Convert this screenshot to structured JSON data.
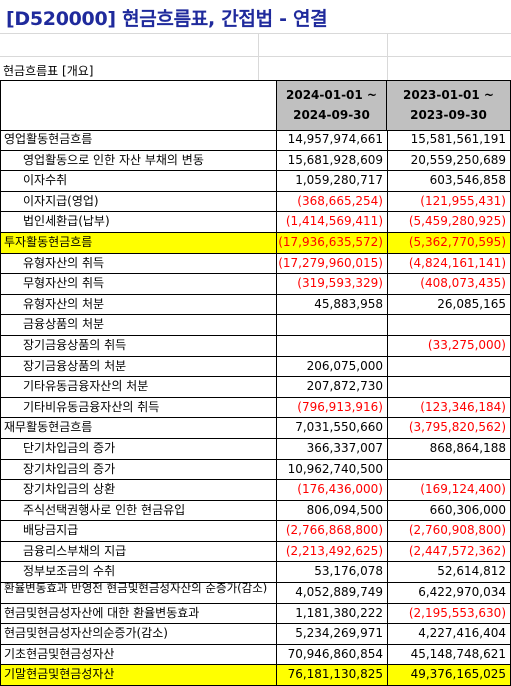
{
  "title": "[D520000] 현금흐름표, 간접법 - 연결",
  "caption": "현금흐름표 [개요]",
  "columns": [
    {
      "line1": "2024-01-01 ~",
      "line2": "2024-09-30"
    },
    {
      "line1": "2023-01-01 ~",
      "line2": "2023-09-30"
    }
  ],
  "rows": [
    {
      "label": "영업활동현금흐름",
      "level": 0,
      "v1": "14,957,974,661",
      "v2": "15,581,561,191"
    },
    {
      "label": "영업활동으로 인한 자산 부채의 변동",
      "level": 1,
      "v1": "15,681,928,609",
      "v2": "20,559,250,689"
    },
    {
      "label": "이자수취",
      "level": 1,
      "v1": "1,059,280,717",
      "v2": "603,546,858"
    },
    {
      "label": "이자지급(영업)",
      "level": 1,
      "v1": "(368,665,254)",
      "v2": "(121,955,431)"
    },
    {
      "label": "법인세환급(납부)",
      "level": 1,
      "v1": "(1,414,569,411)",
      "v2": "(5,459,280,925)"
    },
    {
      "label": "투자활동현금흐름",
      "level": 0,
      "highlight": true,
      "v1": "(17,936,635,572)",
      "v2": "(5,362,770,595)"
    },
    {
      "label": "유형자산의 취득",
      "level": 1,
      "v1": "(17,279,960,015)",
      "v2": "(4,824,161,141)"
    },
    {
      "label": "무형자산의 취득",
      "level": 1,
      "v1": "(319,593,329)",
      "v2": "(408,073,435)"
    },
    {
      "label": "유형자산의 처분",
      "level": 1,
      "v1": "45,883,958",
      "v2": "26,085,165"
    },
    {
      "label": "금융상품의 처분",
      "level": 1,
      "v1": "",
      "v2": ""
    },
    {
      "label": "장기금융상품의 취득",
      "level": 1,
      "v1": "",
      "v2": "(33,275,000)"
    },
    {
      "label": "장기금융상품의 처분",
      "level": 1,
      "v1": "206,075,000",
      "v2": ""
    },
    {
      "label": "기타유동금융자산의 처분",
      "level": 1,
      "v1": "207,872,730",
      "v2": ""
    },
    {
      "label": "기타비유동금융자산의 취득",
      "level": 1,
      "v1": "(796,913,916)",
      "v2": "(123,346,184)"
    },
    {
      "label": "재무활동현금흐름",
      "level": 0,
      "v1": "7,031,550,660",
      "v2": "(3,795,820,562)"
    },
    {
      "label": "단기차입금의 증가",
      "level": 1,
      "v1": "366,337,007",
      "v2": "868,864,188"
    },
    {
      "label": "장기차입금의 증가",
      "level": 1,
      "v1": "10,962,740,500",
      "v2": ""
    },
    {
      "label": "장기차입금의 상환",
      "level": 1,
      "v1": "(176,436,000)",
      "v2": "(169,124,400)"
    },
    {
      "label": "주식선택권행사로 인한 현금유입",
      "level": 1,
      "v1": "806,094,500",
      "v2": "660,306,000"
    },
    {
      "label": "배당금지급",
      "level": 1,
      "v1": "(2,766,868,800)",
      "v2": "(2,760,908,800)"
    },
    {
      "label": "금융리스부채의 지급",
      "level": 1,
      "v1": "(2,213,492,625)",
      "v2": "(2,447,572,362)"
    },
    {
      "label": "정부보조금의 수취",
      "level": 1,
      "v1": "53,176,078",
      "v2": "52,614,812"
    },
    {
      "label": "환율변동효과 반영전 현금및현금성자산의 순증가(감소)",
      "level": 0,
      "squeeze": true,
      "v1": "4,052,889,749",
      "v2": "6,422,970,034"
    },
    {
      "label": "현금및현금성자산에 대한 환율변동효과",
      "level": 0,
      "v1": "1,181,380,222",
      "v2": "(2,195,553,630)"
    },
    {
      "label": "현금및현금성자산의순증가(감소)",
      "level": 0,
      "v1": "5,234,269,971",
      "v2": "4,227,416,404"
    },
    {
      "label": "기초현금및현금성자산",
      "level": 0,
      "v1": "70,946,860,854",
      "v2": "45,148,748,621"
    },
    {
      "label": "기말현금및현금성자산",
      "level": 0,
      "highlight": true,
      "v1": "76,181,130,825",
      "v2": "49,376,165,025"
    }
  ],
  "colors": {
    "title": "#1f2a9c",
    "header_bg": "#c0c0c0",
    "highlight": "#ffff00",
    "negative": "#ff0000"
  }
}
